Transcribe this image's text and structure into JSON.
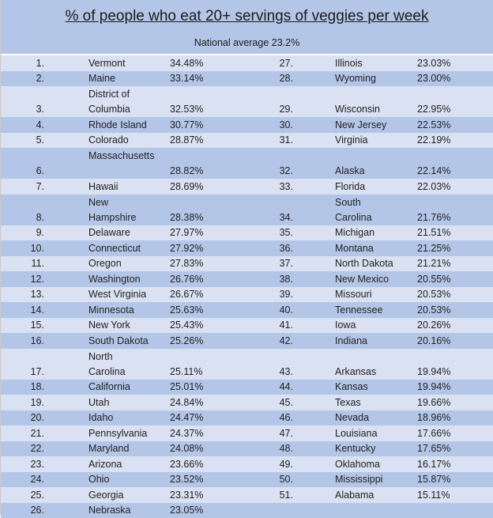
{
  "title": "% of people who eat 20+ servings of veggies per week",
  "subtitle": "National average 23.2%",
  "rows": [
    {
      "left": {
        "rank": "1.",
        "state": [
          "Vermont"
        ],
        "pct": "34.48%"
      },
      "right": {
        "rank": "27.",
        "state": [
          "Illinois"
        ],
        "pct": "23.03%"
      }
    },
    {
      "left": {
        "rank": "2.",
        "state": [
          "Maine"
        ],
        "pct": "33.14%"
      },
      "right": {
        "rank": "28.",
        "state": [
          "Wyoming"
        ],
        "pct": "23.00%"
      }
    },
    {
      "left": {
        "rank": "3.",
        "state": [
          "District of",
          "Columbia"
        ],
        "pct": "32.53%"
      },
      "right": {
        "rank": "29.",
        "state": [
          "Wisconsin"
        ],
        "pct": "22.95%"
      }
    },
    {
      "left": {
        "rank": "4.",
        "state": [
          "Rhode Island"
        ],
        "pct": "30.77%"
      },
      "right": {
        "rank": "30.",
        "state": [
          "New Jersey"
        ],
        "pct": "22.53%"
      }
    },
    {
      "left": {
        "rank": "5.",
        "state": [
          "Colorado"
        ],
        "pct": "28.87%"
      },
      "right": {
        "rank": "31.",
        "state": [
          "Virginia"
        ],
        "pct": "22.19%"
      }
    },
    {
      "left": {
        "rank": "6.",
        "state": [
          "Massachusetts",
          ""
        ],
        "pct": "28.82%"
      },
      "right": {
        "rank": "32.",
        "state": [
          "Alaska"
        ],
        "pct": "22.14%"
      }
    },
    {
      "left": {
        "rank": "7.",
        "state": [
          "Hawaii"
        ],
        "pct": "28.69%"
      },
      "right": {
        "rank": "33.",
        "state": [
          "Florida"
        ],
        "pct": "22.03%"
      }
    },
    {
      "left": {
        "rank": "8.",
        "state": [
          "New",
          "Hampshire"
        ],
        "pct": "28.38%"
      },
      "right": {
        "rank": "34.",
        "state": [
          "South",
          "Carolina"
        ],
        "pct": "21.76%"
      }
    },
    {
      "left": {
        "rank": "9.",
        "state": [
          "Delaware"
        ],
        "pct": "27.97%"
      },
      "right": {
        "rank": "35.",
        "state": [
          "Michigan"
        ],
        "pct": "21.51%"
      }
    },
    {
      "left": {
        "rank": "10.",
        "state": [
          "Connecticut"
        ],
        "pct": "27.92%"
      },
      "right": {
        "rank": "36.",
        "state": [
          "Montana"
        ],
        "pct": "21.25%"
      }
    },
    {
      "left": {
        "rank": "11.",
        "state": [
          "Oregon"
        ],
        "pct": "27.83%"
      },
      "right": {
        "rank": "37.",
        "state": [
          "North Dakota"
        ],
        "pct": "21.21%"
      }
    },
    {
      "left": {
        "rank": "12.",
        "state": [
          "Washington"
        ],
        "pct": "26.76%"
      },
      "right": {
        "rank": "38.",
        "state": [
          "New Mexico"
        ],
        "pct": "20.55%"
      }
    },
    {
      "left": {
        "rank": "13.",
        "state": [
          "West Virginia"
        ],
        "pct": "26.67%"
      },
      "right": {
        "rank": "39.",
        "state": [
          "Missouri"
        ],
        "pct": "20.53%"
      }
    },
    {
      "left": {
        "rank": "14.",
        "state": [
          "Minnesota"
        ],
        "pct": "25.63%"
      },
      "right": {
        "rank": "40.",
        "state": [
          "Tennessee"
        ],
        "pct": "20.53%"
      }
    },
    {
      "left": {
        "rank": "15.",
        "state": [
          "New York"
        ],
        "pct": "25.43%"
      },
      "right": {
        "rank": "41.",
        "state": [
          "Iowa"
        ],
        "pct": "20.26%"
      }
    },
    {
      "left": {
        "rank": "16.",
        "state": [
          "South Dakota"
        ],
        "pct": "25.26%"
      },
      "right": {
        "rank": "42.",
        "state": [
          "Indiana"
        ],
        "pct": "20.16%"
      }
    },
    {
      "left": {
        "rank": "17.",
        "state": [
          "North",
          "Carolina"
        ],
        "pct": "25.11%"
      },
      "right": {
        "rank": "43.",
        "state": [
          "Arkansas"
        ],
        "pct": "19.94%"
      }
    },
    {
      "left": {
        "rank": "18.",
        "state": [
          "California"
        ],
        "pct": "25.01%"
      },
      "right": {
        "rank": "44.",
        "state": [
          "Kansas"
        ],
        "pct": "19.94%"
      }
    },
    {
      "left": {
        "rank": "19.",
        "state": [
          "Utah"
        ],
        "pct": "24.84%"
      },
      "right": {
        "rank": "45.",
        "state": [
          "Texas"
        ],
        "pct": "19.66%"
      }
    },
    {
      "left": {
        "rank": "20.",
        "state": [
          "Idaho"
        ],
        "pct": "24.47%"
      },
      "right": {
        "rank": "46.",
        "state": [
          "Nevada"
        ],
        "pct": "18.96%"
      }
    },
    {
      "left": {
        "rank": "21.",
        "state": [
          "Pennsylvania"
        ],
        "pct": "24.37%"
      },
      "right": {
        "rank": "47.",
        "state": [
          "Louisiana"
        ],
        "pct": "17.66%"
      }
    },
    {
      "left": {
        "rank": "22.",
        "state": [
          "Maryland"
        ],
        "pct": "24.08%"
      },
      "right": {
        "rank": "48.",
        "state": [
          "Kentucky"
        ],
        "pct": "17.65%"
      }
    },
    {
      "left": {
        "rank": "23.",
        "state": [
          "Arizona"
        ],
        "pct": "23.66%"
      },
      "right": {
        "rank": "49.",
        "state": [
          "Oklahoma"
        ],
        "pct": "16.17%"
      }
    },
    {
      "left": {
        "rank": "24.",
        "state": [
          "Ohio"
        ],
        "pct": "23.52%"
      },
      "right": {
        "rank": "50.",
        "state": [
          "Mississippi"
        ],
        "pct": "15.87%"
      }
    },
    {
      "left": {
        "rank": "25.",
        "state": [
          "Georgia"
        ],
        "pct": "23.31%"
      },
      "right": {
        "rank": "51.",
        "state": [
          "Alabama"
        ],
        "pct": "15.11%"
      }
    },
    {
      "left": {
        "rank": "26.",
        "state": [
          "Nebraska"
        ],
        "pct": "23.05%"
      },
      "right": {
        "rank": "",
        "state": [
          ""
        ],
        "pct": ""
      }
    }
  ],
  "colors": {
    "band_dark": "#b4c6e7",
    "band_light": "#d9e1f2",
    "text": "#1f1f1f"
  }
}
